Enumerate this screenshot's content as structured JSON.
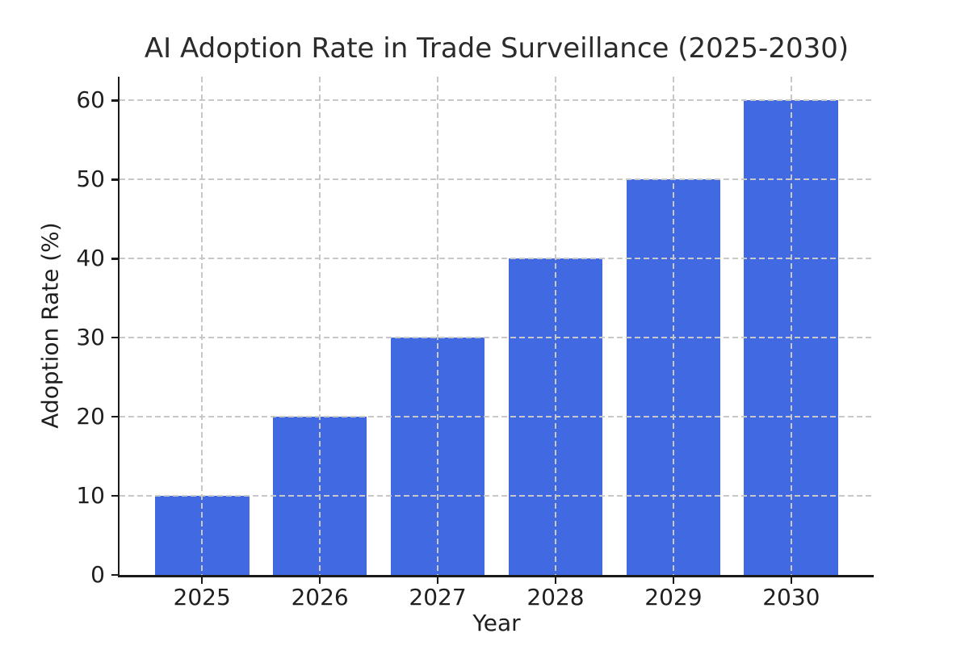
{
  "chart_data": {
    "type": "bar",
    "title": "AI Adoption Rate in Trade Surveillance (2025-2030)",
    "xlabel": "Year",
    "ylabel": "Adoption Rate (%)",
    "categories": [
      "2025",
      "2026",
      "2027",
      "2028",
      "2029",
      "2030"
    ],
    "values": [
      10,
      20,
      30,
      40,
      50,
      60
    ],
    "yticks": [
      0,
      10,
      20,
      30,
      40,
      50,
      60
    ],
    "ylim": [
      0,
      63
    ],
    "bar_color": "#4169E1",
    "grid_color": "#c8c8c8",
    "axis_color": "#1a1a1a",
    "grid": "dashed, both axes, drawn above bars",
    "legend": "none",
    "background": "#ffffff"
  }
}
